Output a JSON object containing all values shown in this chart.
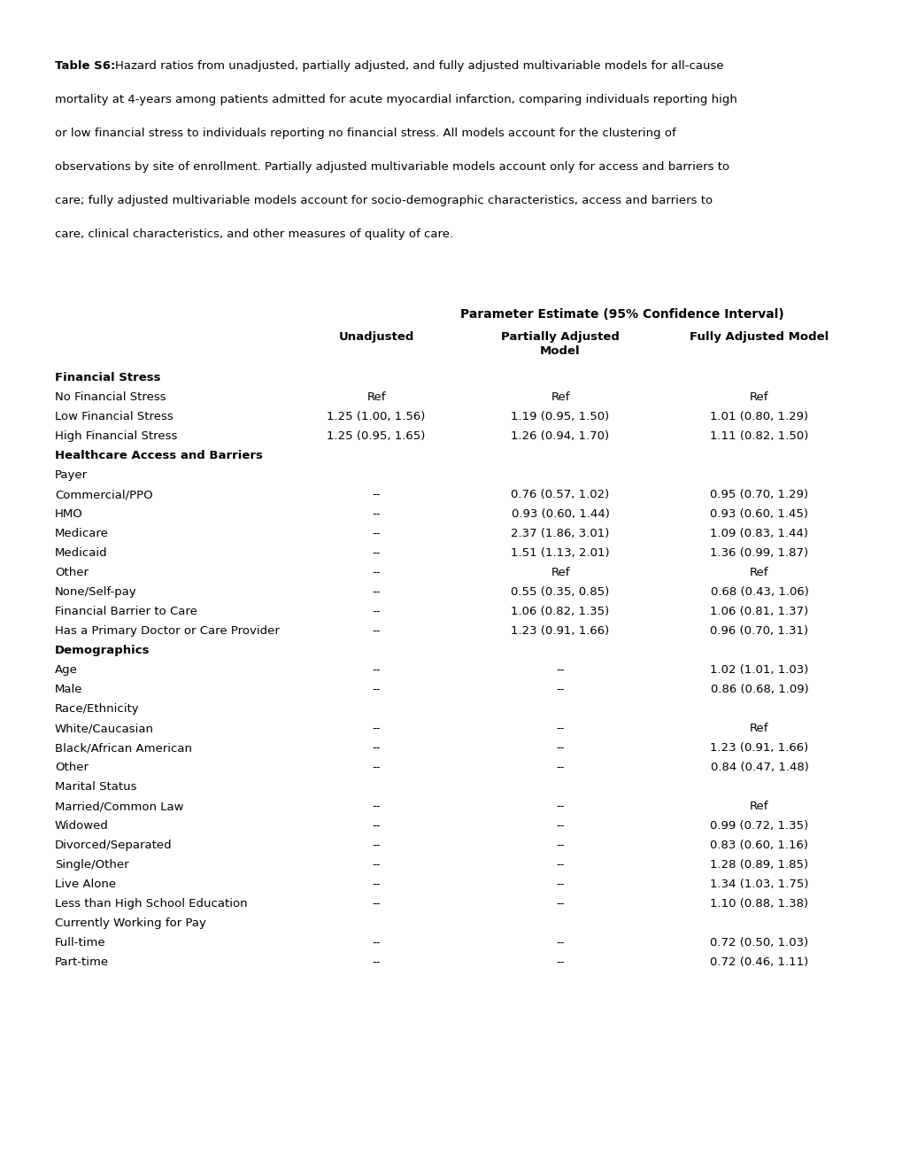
{
  "caption_bold": "Table S6:",
  "caption_lines": [
    "Hazard ratios from unadjusted, partially adjusted, and fully adjusted multivariable models for all-cause",
    "mortality at 4-years among patients admitted for acute myocardial infarction, comparing individuals reporting high",
    "or low financial stress to individuals reporting no financial stress. All models account for the clustering of",
    "observations by site of enrollment. Partially adjusted multivariable models account only for access and barriers to",
    "care; fully adjusted multivariable models account for socio-demographic characteristics, access and barriers to",
    "care, clinical characteristics, and other measures of quality of care."
  ],
  "col_header_main": "Parameter Estimate (95% Confidence Interval)",
  "col_headers": [
    "Unadjusted",
    "Partially Adjusted\nModel",
    "Fully Adjusted Model"
  ],
  "rows": [
    {
      "label": "Financial Stress",
      "bold": true,
      "unadj": "",
      "partial": "",
      "full": ""
    },
    {
      "label": "No Financial Stress",
      "bold": false,
      "unadj": "Ref",
      "partial": "Ref",
      "full": "Ref"
    },
    {
      "label": "Low Financial Stress",
      "bold": false,
      "unadj": "1.25 (1.00, 1.56)",
      "partial": "1.19 (0.95, 1.50)",
      "full": "1.01 (0.80, 1.29)"
    },
    {
      "label": "High Financial Stress",
      "bold": false,
      "unadj": "1.25 (0.95, 1.65)",
      "partial": "1.26 (0.94, 1.70)",
      "full": "1.11 (0.82, 1.50)"
    },
    {
      "label": "Healthcare Access and Barriers",
      "bold": true,
      "unadj": "",
      "partial": "",
      "full": ""
    },
    {
      "label": "Payer",
      "bold": false,
      "unadj": "",
      "partial": "",
      "full": ""
    },
    {
      "label": "Commercial/PPO",
      "bold": false,
      "unadj": "--",
      "partial": "0.76 (0.57, 1.02)",
      "full": "0.95 (0.70, 1.29)"
    },
    {
      "label": "HMO",
      "bold": false,
      "unadj": "--",
      "partial": "0.93 (0.60, 1.44)",
      "full": "0.93 (0.60, 1.45)"
    },
    {
      "label": "Medicare",
      "bold": false,
      "unadj": "--",
      "partial": "2.37 (1.86, 3.01)",
      "full": "1.09 (0.83, 1.44)"
    },
    {
      "label": "Medicaid",
      "bold": false,
      "unadj": "--",
      "partial": "1.51 (1.13, 2.01)",
      "full": "1.36 (0.99, 1.87)"
    },
    {
      "label": "Other",
      "bold": false,
      "unadj": "--",
      "partial": "Ref",
      "full": "Ref"
    },
    {
      "label": "None/Self-pay",
      "bold": false,
      "unadj": "--",
      "partial": "0.55 (0.35, 0.85)",
      "full": "0.68 (0.43, 1.06)"
    },
    {
      "label": "Financial Barrier to Care",
      "bold": false,
      "unadj": "--",
      "partial": "1.06 (0.82, 1.35)",
      "full": "1.06 (0.81, 1.37)"
    },
    {
      "label": "Has a Primary Doctor or Care Provider",
      "bold": false,
      "unadj": "--",
      "partial": "1.23 (0.91, 1.66)",
      "full": "0.96 (0.70, 1.31)"
    },
    {
      "label": "Demographics",
      "bold": true,
      "unadj": "",
      "partial": "",
      "full": ""
    },
    {
      "label": "Age",
      "bold": false,
      "unadj": "--",
      "partial": "--",
      "full": "1.02 (1.01, 1.03)"
    },
    {
      "label": "Male",
      "bold": false,
      "unadj": "--",
      "partial": "--",
      "full": "0.86 (0.68, 1.09)"
    },
    {
      "label": "Race/Ethnicity",
      "bold": false,
      "unadj": "",
      "partial": "",
      "full": ""
    },
    {
      "label": "White/Caucasian",
      "bold": false,
      "unadj": "--",
      "partial": "--",
      "full": "Ref"
    },
    {
      "label": "Black/African American",
      "bold": false,
      "unadj": "--",
      "partial": "--",
      "full": "1.23 (0.91, 1.66)"
    },
    {
      "label": "Other",
      "bold": false,
      "unadj": "--",
      "partial": "--",
      "full": "0.84 (0.47, 1.48)"
    },
    {
      "label": "Marital Status",
      "bold": false,
      "unadj": "",
      "partial": "",
      "full": ""
    },
    {
      "label": "Married/Common Law",
      "bold": false,
      "unadj": "--",
      "partial": "--",
      "full": "Ref"
    },
    {
      "label": "Widowed",
      "bold": false,
      "unadj": "--",
      "partial": "--",
      "full": "0.99 (0.72, 1.35)"
    },
    {
      "label": "Divorced/Separated",
      "bold": false,
      "unadj": "--",
      "partial": "--",
      "full": "0.83 (0.60, 1.16)"
    },
    {
      "label": "Single/Other",
      "bold": false,
      "unadj": "--",
      "partial": "--",
      "full": "1.28 (0.89, 1.85)"
    },
    {
      "label": "Live Alone",
      "bold": false,
      "unadj": "--",
      "partial": "--",
      "full": "1.34 (1.03, 1.75)"
    },
    {
      "label": "Less than High School Education",
      "bold": false,
      "unadj": "--",
      "partial": "--",
      "full": "1.10 (0.88, 1.38)"
    },
    {
      "label": "Currently Working for Pay",
      "bold": false,
      "unadj": "",
      "partial": "",
      "full": ""
    },
    {
      "label": "Full-time",
      "bold": false,
      "unadj": "--",
      "partial": "--",
      "full": "0.72 (0.50, 1.03)"
    },
    {
      "label": "Part-time",
      "bold": false,
      "unadj": "--",
      "partial": "--",
      "full": "0.72 (0.46, 1.11)"
    }
  ],
  "bg_color": "#ffffff",
  "text_color": "#000000",
  "font_size": 9.5,
  "caption_font_size": 9.5,
  "fig_width": 10.2,
  "fig_height": 13.2,
  "dpi": 100
}
